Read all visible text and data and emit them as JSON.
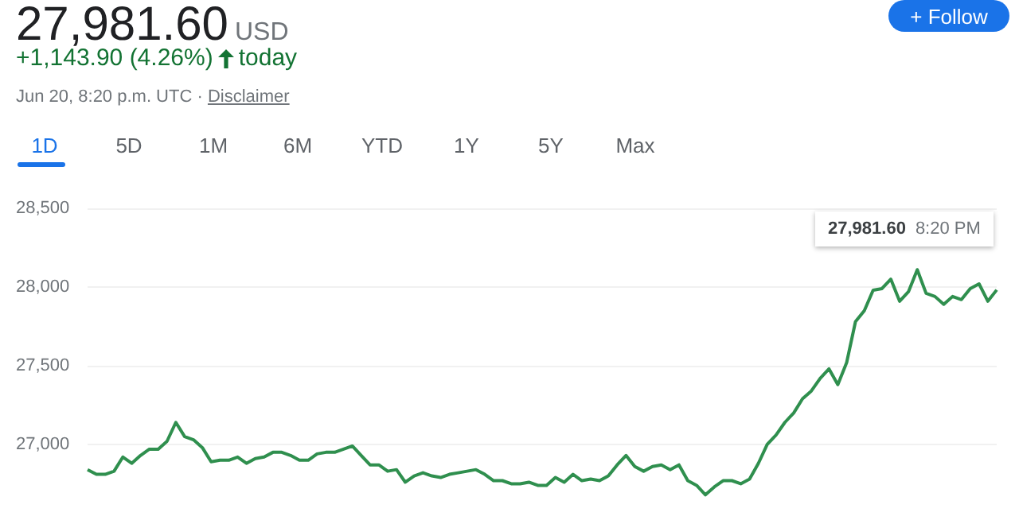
{
  "chart_data": {
    "type": "line",
    "title": "27,981.60",
    "annotations": [
      "USD",
      "+1,143.90 (4.26%)",
      "today",
      "Jun 20, 8:20 p.m. UTC",
      "Disclaimer",
      "1D",
      "5D",
      "1M",
      "6M",
      "YTD",
      "1Y",
      "5Y",
      "Max",
      "+ Follow",
      "27,981.60",
      "8:20 PM",
      "·"
    ],
    "categories": [
      null,
      null,
      null,
      null,
      null,
      null,
      null,
      null,
      null,
      null,
      null,
      null,
      null,
      null,
      null,
      null,
      null,
      null,
      null,
      null,
      null,
      null,
      null,
      null,
      null,
      null,
      null,
      null,
      null,
      null,
      null,
      null,
      null,
      null,
      null,
      null,
      null,
      null,
      null,
      null,
      null,
      null,
      null,
      null,
      null,
      null,
      null,
      null,
      null,
      null,
      null,
      null,
      null,
      null,
      null,
      null,
      null,
      null,
      null,
      null,
      null,
      null,
      null,
      null,
      null,
      null,
      null,
      null,
      null,
      null,
      null,
      null,
      null,
      null,
      null,
      null,
      null,
      null,
      null,
      null,
      null,
      null,
      null,
      null,
      null,
      null,
      null,
      null,
      null,
      null,
      null,
      null,
      null,
      null,
      null,
      null,
      null,
      null,
      null,
      null,
      null,
      null,
      null,
      null
    ],
    "series": [
      {
        "color": "#2f8f4e",
        "values": [
          26840,
          26810,
          26810,
          26830,
          26920,
          26880,
          26930,
          26970,
          26970,
          27020,
          27140,
          27050,
          27030,
          26980,
          26890,
          26900,
          26900,
          26920,
          26880,
          26910,
          26920,
          26950,
          26950,
          26930,
          26900,
          26900,
          26940,
          26950,
          26950,
          26970,
          26990,
          26930,
          26870,
          26870,
          26830,
          26840,
          26760,
          26800,
          26820,
          26800,
          26790,
          26810,
          26820,
          26830,
          26840,
          26810,
          26770,
          26770,
          26750,
          26750,
          26760,
          26740,
          26740,
          26790,
          26760,
          26810,
          26770,
          26780,
          26770,
          26800,
          26870,
          26930,
          26860,
          26830,
          26860,
          26870,
          26840,
          26870,
          26770,
          26740,
          26680,
          26730,
          26770,
          26770,
          26750,
          26780,
          26880,
          27000,
          27060,
          27140,
          27200,
          27290,
          27340,
          27420,
          27480,
          27380,
          27520,
          27780,
          27850,
          27980,
          27990,
          28050,
          27910,
          27970,
          28110,
          27960,
          27940,
          27890,
          27940,
          27920,
          27990,
          28020,
          27910,
          27981.6
        ]
      }
    ],
    "ylim": [
      26520,
      28500
    ],
    "yticks": [
      {
        "value": 27000,
        "label": "27,000"
      },
      {
        "value": 27500,
        "label": "27,500"
      },
      {
        "value": 28000,
        "label": "28,000"
      },
      {
        "value": 28500,
        "label": "28,500"
      }
    ],
    "grid": "y"
  }
}
